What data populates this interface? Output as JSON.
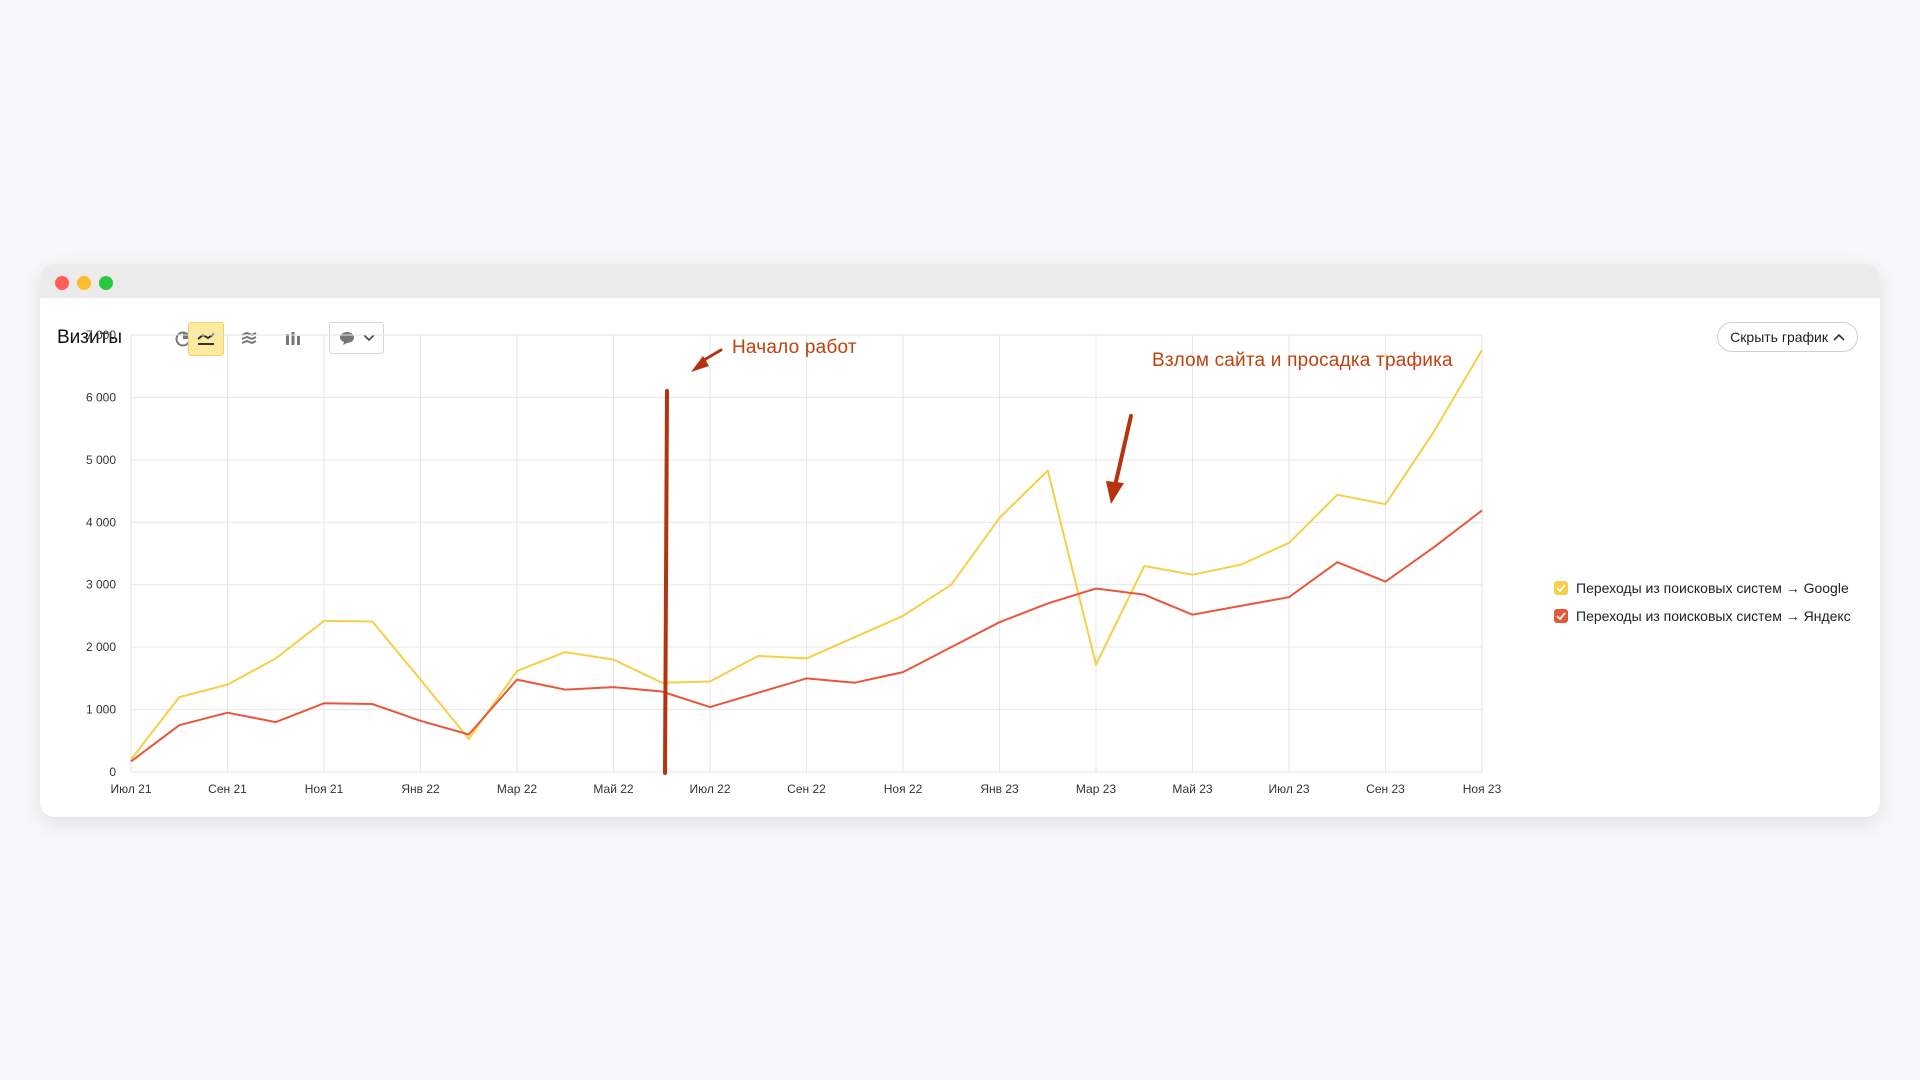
{
  "window": {
    "title": ""
  },
  "toolbar": {
    "title": "Визиты",
    "hide_chart_label": "Скрыть график"
  },
  "icons": {
    "pie": "pie-chart-icon",
    "line": "line-chart-icon",
    "area": "stacked-area-icon",
    "bar": "bar-chart-icon",
    "comment": "comment-icon",
    "chevron": "chevron-down-icon"
  },
  "colors": {
    "google": "#f5cf46",
    "yandex": "#e9573a",
    "annotation": "#b5330e",
    "annotation_text": "#c2410c"
  },
  "annotations": {
    "start": "Начало работ",
    "hack": "Взлом сайта и просадка трафика"
  },
  "chart_data": {
    "type": "line",
    "title": "",
    "xlabel": "",
    "ylabel": "",
    "ylim": [
      0,
      7000
    ],
    "yticks": [
      0,
      1000,
      2000,
      3000,
      4000,
      5000,
      6000,
      7000
    ],
    "ytick_labels": [
      "0",
      "1 000",
      "2 000",
      "3 000",
      "4 000",
      "5 000",
      "6 000",
      "7 000"
    ],
    "x": [
      "Июл 21",
      "Авг 21",
      "Сен 21",
      "Окт 21",
      "Ноя 21",
      "Дек 21",
      "Янв 22",
      "Фев 22",
      "Мар 22",
      "Апр 22",
      "Май 22",
      "Июн 22",
      "Июл 22",
      "Авг 22",
      "Сен 22",
      "Окт 22",
      "Ноя 22",
      "Дек 22",
      "Янв 23",
      "Фев 23",
      "Мар 23",
      "Апр 23",
      "Май 23",
      "Июн 23",
      "Июл 23",
      "Авг 23",
      "Сен 23",
      "Окт 23",
      "Ноя 23"
    ],
    "xtick_labels": [
      "Июл 21",
      "Сен 21",
      "Ноя 21",
      "Янв 22",
      "Мар 22",
      "Май 22",
      "Июл 22",
      "Сен 22",
      "Ноя 22",
      "Янв 23",
      "Мар 23",
      "Май 23",
      "Июл 23",
      "Сен 23",
      "Ноя 23"
    ],
    "grid": true,
    "legend_position": "right",
    "series": [
      {
        "name": "Переходы из поисковых систем → Google",
        "color": "#f5cf46",
        "values": [
          200,
          1200,
          1400,
          1820,
          2420,
          2410,
          1480,
          530,
          1620,
          1920,
          1800,
          1430,
          1450,
          1860,
          1820,
          2160,
          2500,
          3000,
          4070,
          4830,
          1720,
          3300,
          3160,
          3320,
          3670,
          4440,
          4290,
          5450,
          6760
        ]
      },
      {
        "name": "Переходы из поисковых систем → Яндекс",
        "color": "#e9573a",
        "values": [
          170,
          750,
          950,
          800,
          1100,
          1090,
          820,
          600,
          1480,
          1320,
          1360,
          1290,
          1040,
          1270,
          1500,
          1430,
          1600,
          2000,
          2400,
          2700,
          2940,
          2840,
          2520,
          2660,
          2800,
          3360,
          3050,
          3600,
          4190
        ]
      }
    ]
  }
}
